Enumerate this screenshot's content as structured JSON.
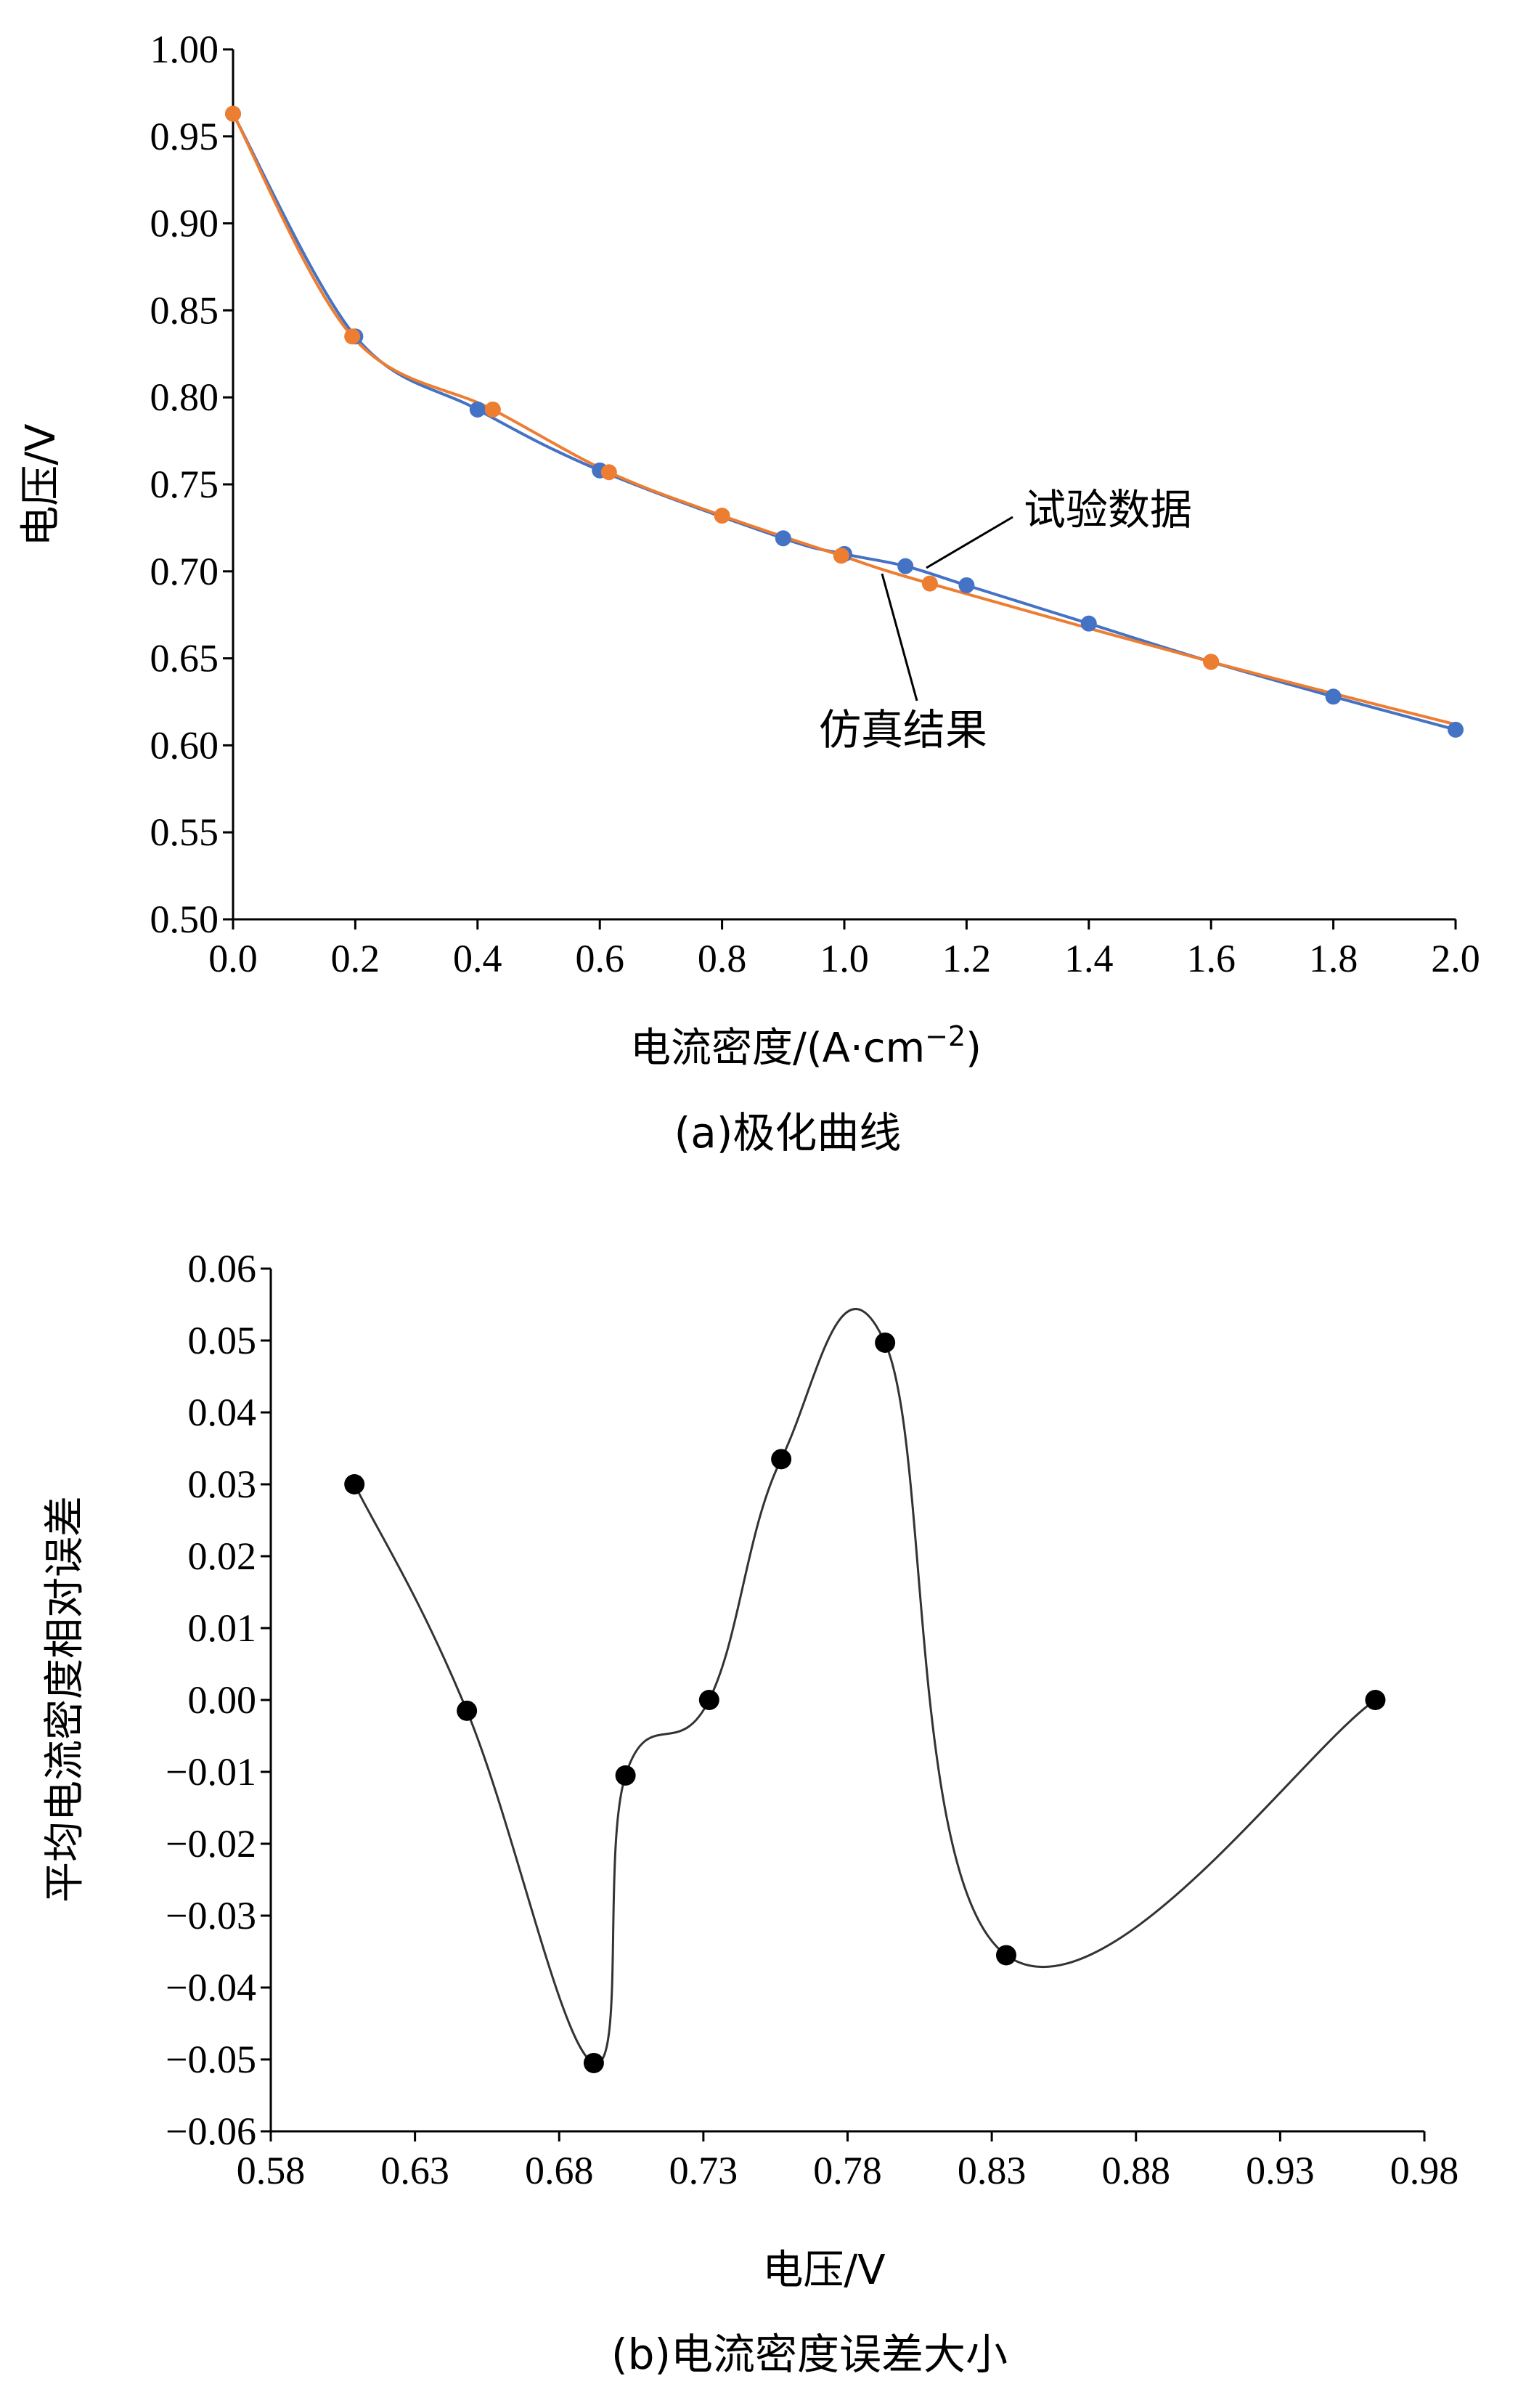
{
  "chart_data": [
    {
      "type": "line",
      "caption": "(a)极化曲线",
      "xlabel": "电流密度/(A·cm",
      "xlabel_sup": "−2",
      "xlabel_close": ")",
      "ylabel": "电压/V",
      "xlim": [
        0.0,
        2.0
      ],
      "ylim": [
        0.5,
        1.0
      ],
      "x_ticks": [
        "0.0",
        "0.2",
        "0.4",
        "0.6",
        "0.8",
        "1.0",
        "1.2",
        "1.4",
        "1.6",
        "1.8",
        "2.0"
      ],
      "y_ticks": [
        "0.50",
        "0.55",
        "0.60",
        "0.65",
        "0.70",
        "0.75",
        "0.80",
        "0.85",
        "0.90",
        "0.95",
        "1.00"
      ],
      "series": [
        {
          "name": "试验数据",
          "color": "#4472C4",
          "x": [
            0.0,
            0.2,
            0.4,
            0.6,
            0.9,
            1.0,
            1.1,
            1.2,
            1.4,
            1.6,
            1.8,
            2.0
          ],
          "y": [
            0.963,
            0.835,
            0.793,
            0.758,
            0.719,
            0.71,
            0.703,
            0.692,
            0.67,
            0.648,
            0.628,
            0.609
          ]
        },
        {
          "name": "仿真结果",
          "color": "#ED7D31",
          "x": [
            0.0,
            0.195,
            0.425,
            0.615,
            0.8,
            0.995,
            1.14,
            1.6
          ],
          "y": [
            0.963,
            0.835,
            0.793,
            0.757,
            0.732,
            0.709,
            0.693,
            0.648
          ]
        }
      ],
      "end_point": [
        2.0,
        0.612
      ],
      "grid": false
    },
    {
      "type": "line",
      "caption": "(b)电流密度误差大小",
      "xlabel": "电压/V",
      "ylabel": "平均电流密度相对误差",
      "xlim": [
        0.58,
        0.98
      ],
      "ylim": [
        -0.06,
        0.06
      ],
      "x_ticks": [
        "0.58",
        "0.63",
        "0.68",
        "0.73",
        "0.78",
        "0.83",
        "0.88",
        "0.93",
        "0.98"
      ],
      "y_ticks": [
        "−0.06",
        "−0.05",
        "−0.04",
        "−0.03",
        "−0.02",
        "−0.01",
        "0.00",
        "0.01",
        "0.02",
        "0.03",
        "0.04",
        "0.05",
        "0.06"
      ],
      "series": [
        {
          "color": "#000000",
          "x": [
            0.609,
            0.648,
            0.692,
            0.703,
            0.732,
            0.757,
            0.793,
            0.835,
            0.963
          ],
          "y": [
            0.03,
            -0.0015,
            -0.0505,
            -0.0105,
            0.0,
            0.0335,
            0.0497,
            -0.0355,
            0.0
          ]
        }
      ],
      "grid": false
    }
  ]
}
